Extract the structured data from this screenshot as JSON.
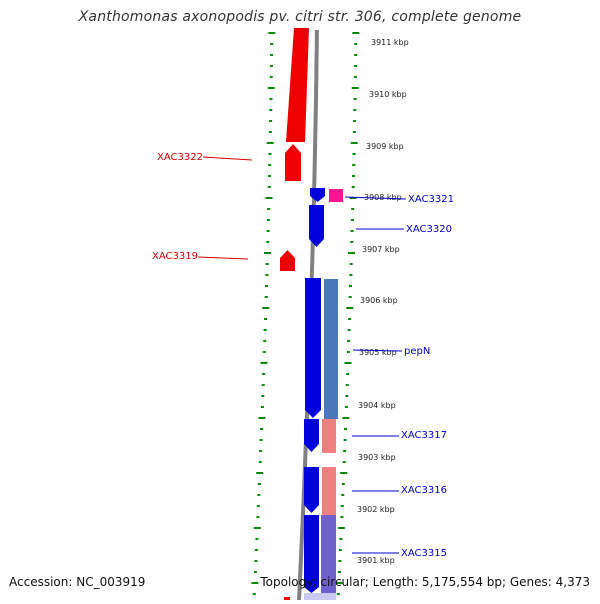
{
  "title": "Xanthomonas axonopodis pv. citri str. 306, complete genome",
  "footer": {
    "accession": "Accession: NC_003919",
    "topology": "Topology: circular; Length: 5,175,554 bp; Genes: 4,373"
  },
  "ruler": {
    "unit": "kbp",
    "labels": [
      "3911 kbp",
      "3910 kbp",
      "3909 kbp",
      "3908 kbp",
      "3907 kbp",
      "3906 kbp",
      "3905 kbp",
      "3904 kbp",
      "3903 kbp",
      "3902 kbp",
      "3901 kbp"
    ]
  },
  "colors": {
    "forward_gene": "#ee0000",
    "reverse_gene": "#0000dd",
    "gc_skew_pos": "#4a78b8",
    "gc_skew_neg": "#ee8080",
    "gc_skew_alt": "#7060cc",
    "tick": "#0a8a0a",
    "backbone": "#808080",
    "label_forward": "#dd0000",
    "label_reverse": "#0000cc",
    "highlight": "#ff1493"
  },
  "genes": [
    {
      "name": "XAC3322",
      "strand": "forward"
    },
    {
      "name": "XAC3321",
      "strand": "reverse"
    },
    {
      "name": "XAC3320",
      "strand": "reverse"
    },
    {
      "name": "XAC3319",
      "strand": "forward"
    },
    {
      "name": "pepN",
      "strand": "reverse"
    },
    {
      "name": "XAC3317",
      "strand": "reverse"
    },
    {
      "name": "XAC3316",
      "strand": "reverse"
    },
    {
      "name": "XAC3315",
      "strand": "reverse"
    }
  ]
}
